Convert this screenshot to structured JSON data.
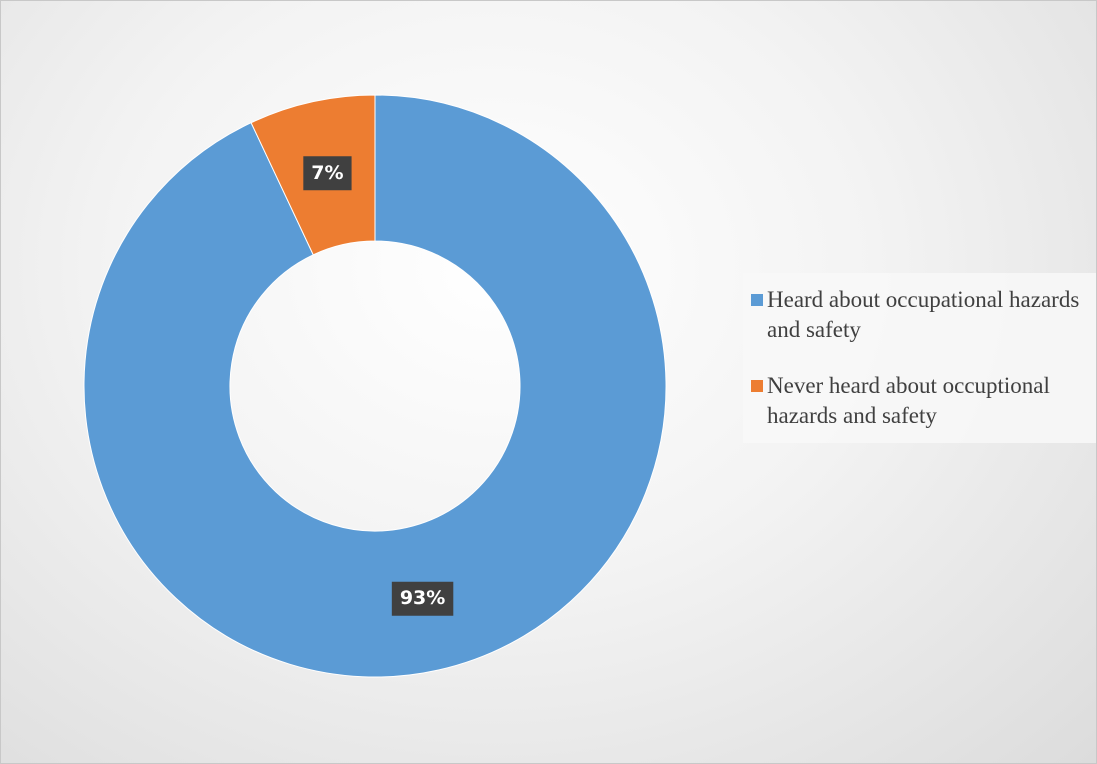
{
  "chart_data": {
    "type": "donut",
    "categories": [
      "Heard about occupational hazards and safety",
      "Never heard about occuptional hazards and safety"
    ],
    "values": [
      93,
      7
    ],
    "value_labels": [
      "93%",
      "7%"
    ],
    "colors": [
      "#5b9bd5",
      "#ed7d31"
    ]
  }
}
